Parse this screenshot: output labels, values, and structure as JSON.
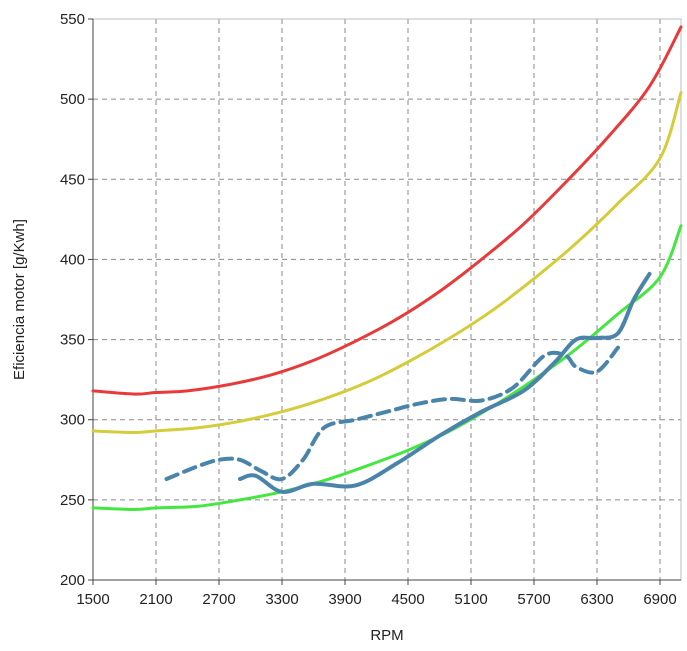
{
  "chart_data": {
    "type": "line",
    "title": "",
    "xlabel": "RPM",
    "ylabel": "Eficiencia motor [g/Kwh]",
    "xlim": [
      1500,
      7100
    ],
    "ylim": [
      200,
      550
    ],
    "xticks": [
      1500,
      2100,
      2700,
      3300,
      3900,
      4500,
      5100,
      5700,
      6300,
      6900
    ],
    "yticks": [
      200,
      250,
      300,
      350,
      400,
      450,
      500,
      550
    ],
    "grid": true,
    "series": [
      {
        "color": "#e83a3a",
        "width": 3,
        "dash": "solid",
        "x": [
          1500,
          1900,
          2100,
          2400,
          2800,
          3200,
          3600,
          4000,
          4400,
          4800,
          5200,
          5600,
          6000,
          6400,
          6800,
          7100
        ],
        "y": [
          318,
          316,
          317,
          318,
          322,
          328,
          337,
          349,
          363,
          380,
          400,
          422,
          448,
          476,
          508,
          545
        ]
      },
      {
        "color": "#d4cc3a",
        "width": 3,
        "dash": "solid",
        "x": [
          1500,
          1900,
          2100,
          2500,
          2900,
          3300,
          3700,
          4100,
          4500,
          4900,
          5300,
          5700,
          6100,
          6500,
          6900,
          7100
        ],
        "y": [
          293,
          292,
          293,
          295,
          299,
          305,
          313,
          323,
          336,
          351,
          368,
          388,
          410,
          435,
          463,
          504
        ]
      },
      {
        "color": "#44e640",
        "width": 3,
        "dash": "solid",
        "x": [
          1500,
          1900,
          2100,
          2500,
          2900,
          3300,
          3700,
          4100,
          4500,
          4900,
          5300,
          5700,
          6100,
          6500,
          6900,
          7100
        ],
        "y": [
          245,
          244,
          245,
          246,
          250,
          255,
          262,
          271,
          281,
          293,
          308,
          325,
          344,
          366,
          389,
          421
        ]
      },
      {
        "color": "#4a84ab",
        "width": 4,
        "dash": "solid",
        "x": [
          2900,
          3050,
          3300,
          3600,
          4000,
          4400,
          4800,
          5200,
          5600,
          5900,
          6100,
          6300,
          6500,
          6650,
          6800
        ],
        "y": [
          263,
          265,
          255,
          260,
          259,
          273,
          290,
          305,
          318,
          336,
          350,
          351,
          354,
          375,
          391
        ]
      },
      {
        "color": "#4a84ab",
        "width": 4,
        "dash": "dashed",
        "x": [
          2200,
          2500,
          2700,
          2900,
          3100,
          3300,
          3500,
          3700,
          4000,
          4300,
          4600,
          4900,
          5200,
          5500,
          5800,
          6000,
          6100,
          6300,
          6500
        ],
        "y": [
          263,
          271,
          275,
          275,
          268,
          263,
          275,
          295,
          300,
          305,
          310,
          313,
          312,
          320,
          340,
          340,
          333,
          330,
          345
        ]
      }
    ]
  }
}
